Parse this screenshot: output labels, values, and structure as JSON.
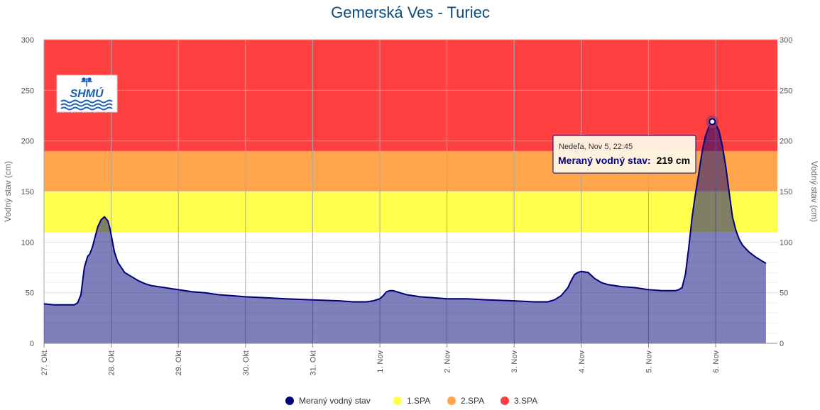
{
  "colors": {
    "title": "#0c4a7a",
    "series": "#00007a",
    "series_fill": "#7a7ab8",
    "spa1": "#ffff4c",
    "spa2": "#ffa64c",
    "spa3": "#ff4040",
    "grid": "#e0e0e0",
    "vgrid": "#aaaaaa",
    "axis_text": "#555555"
  },
  "logo": {
    "text": "SHMÚ",
    "icon": "weather-vane-icon"
  },
  "tooltip": {
    "date": "Nedeľa, Nov 5, 22:45",
    "label": "Meraný vodný stav:",
    "value": "219 cm"
  },
  "chart_data": {
    "type": "area",
    "title": "Gemerská Ves - Turiec",
    "ylabel": "Vodný stav (cm)",
    "ylabel_right": "Vodný stav (cm)",
    "ylim": [
      0,
      300
    ],
    "yticks": [
      0,
      50,
      100,
      150,
      200,
      250,
      300
    ],
    "xlim": [
      0,
      11.25
    ],
    "xticks": [
      {
        "x": 0,
        "label": "27. Okt"
      },
      {
        "x": 1,
        "label": "28. Okt"
      },
      {
        "x": 2,
        "label": "29. Okt"
      },
      {
        "x": 3,
        "label": "30. Okt"
      },
      {
        "x": 4,
        "label": "31. Okt"
      },
      {
        "x": 5,
        "label": "1. Nov"
      },
      {
        "x": 6,
        "label": "2. Nov"
      },
      {
        "x": 7,
        "label": "3. Nov"
      },
      {
        "x": 8,
        "label": "4. Nov"
      },
      {
        "x": 9,
        "label": "5. Nov"
      },
      {
        "x": 10,
        "label": "6. Nov"
      }
    ],
    "bands": [
      {
        "name": "1.SPA",
        "from": 110,
        "to": 150,
        "color": "#ffff4c"
      },
      {
        "name": "2.SPA",
        "from": 150,
        "to": 190,
        "color": "#ffa64c"
      },
      {
        "name": "3.SPA",
        "from": 190,
        "to": 300,
        "color": "#ff4040"
      }
    ],
    "legend": [
      "Meraný vodný stav",
      "1.SPA",
      "2.SPA",
      "3.SPA"
    ],
    "legend_placement": "bottom-center",
    "grid": true,
    "highlight": {
      "x": 9.95,
      "y": 219
    },
    "series": [
      {
        "name": "Meraný vodný stav",
        "x": [
          0,
          0.15,
          0.3,
          0.45,
          0.5,
          0.55,
          0.6,
          0.65,
          0.68,
          0.72,
          0.76,
          0.8,
          0.85,
          0.9,
          0.95,
          0.98,
          1.0,
          1.05,
          1.1,
          1.15,
          1.2,
          1.3,
          1.4,
          1.5,
          1.6,
          1.7,
          1.8,
          1.9,
          2.0,
          2.2,
          2.4,
          2.6,
          2.8,
          3.0,
          3.3,
          3.6,
          4.0,
          4.4,
          4.6,
          4.8,
          4.9,
          5.0,
          5.05,
          5.1,
          5.15,
          5.2,
          5.3,
          5.4,
          5.6,
          5.8,
          6.0,
          6.3,
          6.6,
          7.0,
          7.3,
          7.5,
          7.6,
          7.7,
          7.8,
          7.85,
          7.9,
          7.95,
          8.0,
          8.1,
          8.15,
          8.2,
          8.3,
          8.4,
          8.6,
          8.8,
          9.0,
          9.2,
          9.4,
          9.45,
          9.5,
          9.55,
          9.6,
          9.65,
          9.7,
          9.75,
          9.8,
          9.85,
          9.9,
          9.95,
          10.0,
          10.05,
          10.1,
          10.15,
          10.2,
          10.25,
          10.3,
          10.35,
          10.4,
          10.5,
          10.6,
          10.75
        ],
        "values": [
          39,
          38,
          38,
          38,
          40,
          48,
          75,
          86,
          88,
          95,
          105,
          115,
          122,
          125,
          121,
          114,
          107,
          90,
          80,
          75,
          70,
          66,
          62,
          59,
          57,
          56,
          55,
          54,
          53,
          51,
          50,
          48,
          47,
          46,
          45,
          44,
          43,
          42,
          41,
          41,
          42,
          44,
          47,
          51,
          52,
          52,
          50,
          48,
          46,
          45,
          44,
          44,
          43,
          42,
          41,
          41,
          43,
          47,
          55,
          62,
          68,
          70,
          71,
          70,
          67,
          64,
          60,
          58,
          56,
          55,
          53,
          52,
          52,
          53,
          55,
          68,
          95,
          125,
          148,
          168,
          190,
          205,
          214,
          219,
          217,
          210,
          195,
          175,
          150,
          125,
          112,
          103,
          97,
          90,
          85,
          79
        ]
      }
    ]
  }
}
